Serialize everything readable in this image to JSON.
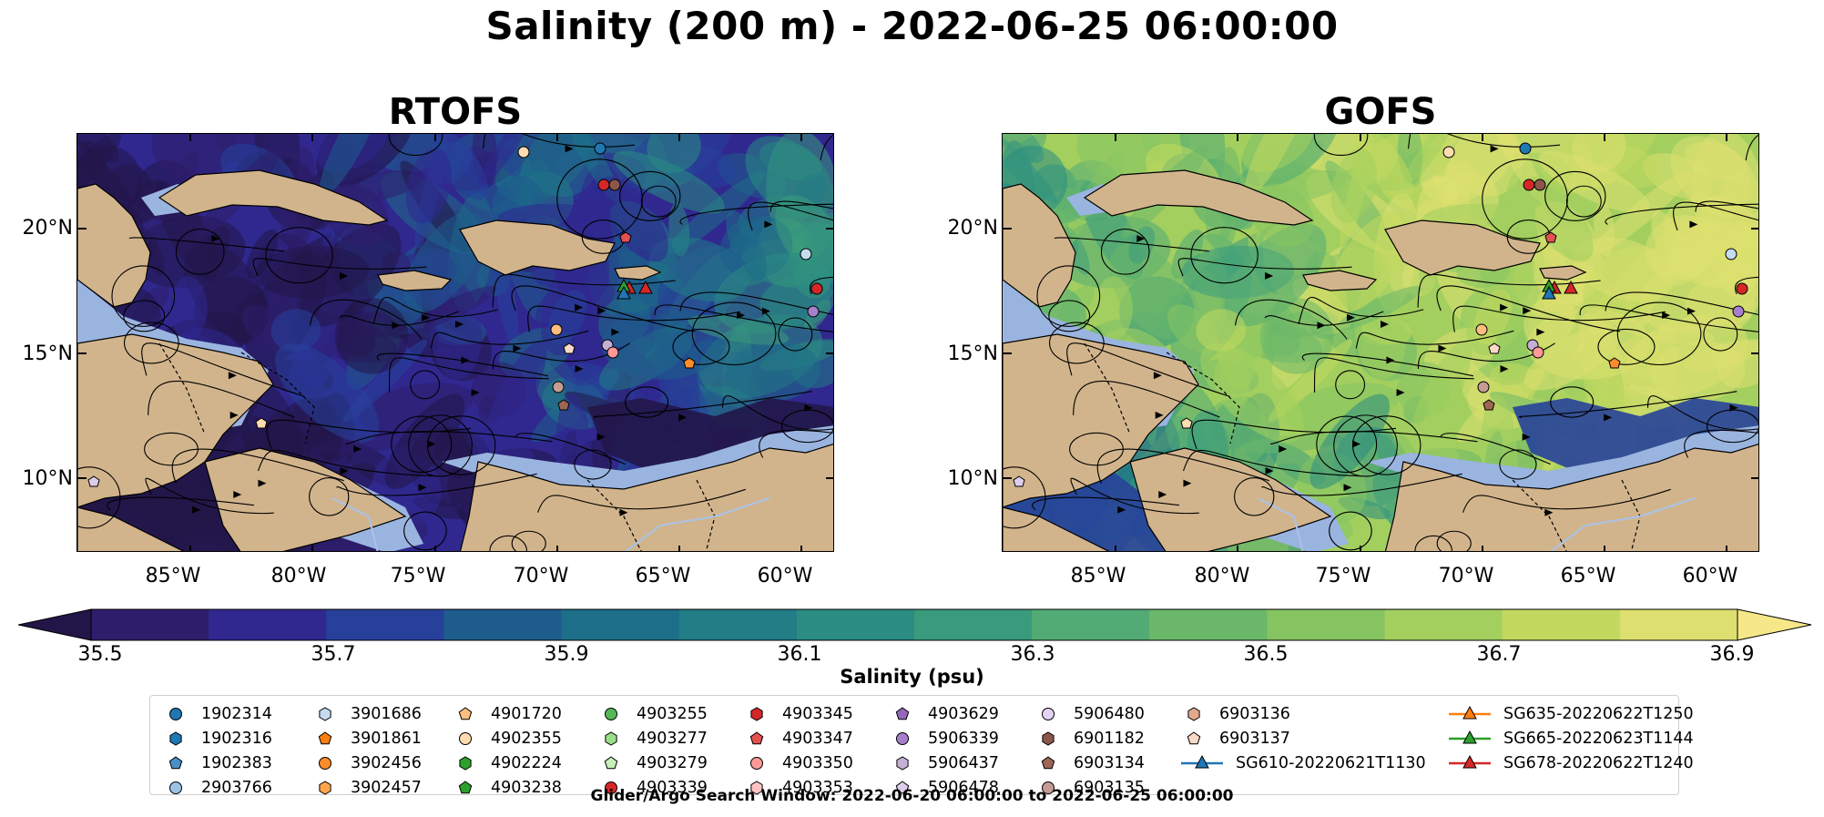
{
  "figure_title": "Salinity (200 m) - 2022-06-25 06:00:00",
  "panels": [
    {
      "title": "RTOFS",
      "palette_bias": -0.35
    },
    {
      "title": "GOFS",
      "palette_bias": 0.35
    }
  ],
  "lat_labels": [
    "20°N",
    "15°N",
    "10°N"
  ],
  "lon_labels": [
    "85°W",
    "80°W",
    "75°W",
    "70°W",
    "65°W",
    "60°W"
  ],
  "colorbar": {
    "label": "Salinity (psu)",
    "ticks": [
      "35.5",
      "35.7",
      "35.9",
      "36.1",
      "36.3",
      "36.5",
      "36.7",
      "36.9"
    ],
    "colors": [
      "#2d1e6b",
      "#30288f",
      "#27419a",
      "#1e5c8c",
      "#1d6e88",
      "#217d86",
      "#2a8c82",
      "#3a9a7c",
      "#52ab74",
      "#6bb86a",
      "#86c462",
      "#a3cf5f",
      "#c1d95f",
      "#dde070"
    ],
    "extend": "both",
    "under_color": "#221649",
    "over_color": "#f6e889"
  },
  "land_color": "#d2b48c",
  "shallow_color": "#9ab4e0",
  "chart_data": {
    "type": "heatmap",
    "title": "Salinity (200 m) - 2022-06-25 06:00:00",
    "subplots": [
      "RTOFS",
      "GOFS"
    ],
    "colorbar_label": "Salinity (psu)",
    "value_range": [
      35.5,
      36.9
    ],
    "xlim": [
      -89,
      -58
    ],
    "ylim": [
      7,
      24
    ]
  },
  "legend": {
    "columns": [
      [
        {
          "label": "1902314",
          "marker": "circle",
          "color": "#1f77b4"
        },
        {
          "label": "1902316",
          "marker": "hexagon",
          "color": "#1f77b4"
        },
        {
          "label": "1902383",
          "marker": "pentagon",
          "color": "#4a90c8"
        },
        {
          "label": "2903766",
          "marker": "circle",
          "color": "#9cc3e6"
        }
      ],
      [
        {
          "label": "3901686",
          "marker": "hexagon",
          "color": "#c6dbef"
        },
        {
          "label": "3901861",
          "marker": "pentagon",
          "color": "#ff7f0e"
        },
        {
          "label": "3902456",
          "marker": "circle",
          "color": "#ff8c2a"
        },
        {
          "label": "3902457",
          "marker": "hexagon",
          "color": "#ffa64d"
        }
      ],
      [
        {
          "label": "4901720",
          "marker": "pentagon",
          "color": "#ffbe7d"
        },
        {
          "label": "4902355",
          "marker": "circle",
          "color": "#ffdcb0"
        },
        {
          "label": "4902224",
          "marker": "hexagon",
          "color": "#2ca02c"
        },
        {
          "label": "4903238",
          "marker": "pentagon",
          "color": "#2ca02c"
        }
      ],
      [
        {
          "label": "4903255",
          "marker": "circle",
          "color": "#55b855"
        },
        {
          "label": "4903277",
          "marker": "hexagon",
          "color": "#98df8a"
        },
        {
          "label": "4903279",
          "marker": "pentagon",
          "color": "#c7f0b8"
        },
        {
          "label": "4903339",
          "marker": "circle",
          "color": "#d62728"
        }
      ],
      [
        {
          "label": "4903345",
          "marker": "hexagon",
          "color": "#d62728"
        },
        {
          "label": "4903347",
          "marker": "pentagon",
          "color": "#e45050"
        },
        {
          "label": "4903350",
          "marker": "circle",
          "color": "#ff9896"
        },
        {
          "label": "4903353",
          "marker": "hexagon",
          "color": "#ffc4c2"
        }
      ],
      [
        {
          "label": "4903629",
          "marker": "pentagon",
          "color": "#9467bd"
        },
        {
          "label": "5906339",
          "marker": "circle",
          "color": "#a77fcb"
        },
        {
          "label": "5906437",
          "marker": "hexagon",
          "color": "#c5b0d5"
        },
        {
          "label": "5906478",
          "marker": "pentagon",
          "color": "#dccdea"
        }
      ],
      [
        {
          "label": "5906480",
          "marker": "circle",
          "color": "#e5d3f5"
        },
        {
          "label": "6901182",
          "marker": "hexagon",
          "color": "#8c564b"
        },
        {
          "label": "6903134",
          "marker": "pentagon",
          "color": "#9e6656"
        },
        {
          "label": "6903135",
          "marker": "circle",
          "color": "#c49c94"
        }
      ],
      [
        {
          "label": "6903136",
          "marker": "hexagon",
          "color": "#e2a98d"
        },
        {
          "label": "6903137",
          "marker": "pentagon",
          "color": "#fbd9c8"
        },
        {
          "label": "SG610-20220621T1130",
          "marker": "triangle-line",
          "color": "#1f77b4"
        }
      ],
      [
        {
          "label": "SG635-20220622T1250",
          "marker": "triangle-line",
          "color": "#ff7f0e"
        },
        {
          "label": "SG665-20220623T1144",
          "marker": "triangle-line",
          "color": "#2ca02c"
        },
        {
          "label": "SG678-20220622T1240",
          "marker": "triangle-line",
          "color": "#d62728"
        }
      ]
    ]
  },
  "footnote": "Glider/Argo Search Window: 2022-06-20 06:00:00 to 2022-06-25 06:00:00"
}
